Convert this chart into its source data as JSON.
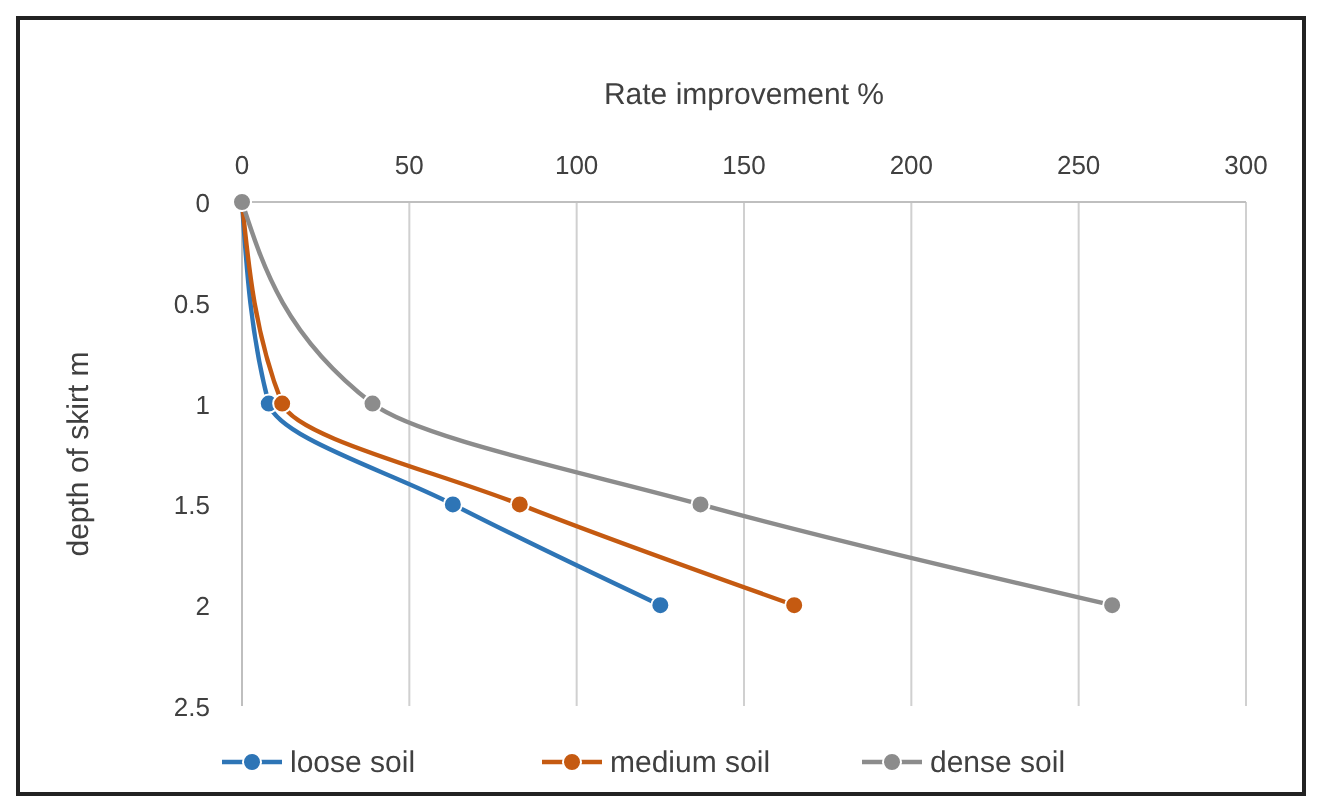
{
  "chart_data": {
    "type": "line",
    "xlabel": "Rate improvement %",
    "ylabel": "depth of skirt m",
    "xlim": [
      0,
      300
    ],
    "xticks": [
      0,
      50,
      100,
      150,
      200,
      250,
      300
    ],
    "ylim": [
      2.5,
      0
    ],
    "yticks": [
      0,
      0.5,
      1,
      1.5,
      2,
      2.5
    ],
    "grid": "x",
    "legend": "bottom",
    "marker": "circle",
    "line_style": "solid",
    "series": [
      {
        "name": "loose soil",
        "color": "#2e75b6",
        "x": [
          0,
          8,
          63,
          125
        ],
        "values": [
          0,
          1,
          1.5,
          2
        ]
      },
      {
        "name": "medium soil",
        "color": "#c55a11",
        "x": [
          0,
          12,
          83,
          165
        ],
        "values": [
          0,
          1,
          1.5,
          2
        ]
      },
      {
        "name": "dense soil",
        "color": "#8c8c8c",
        "x": [
          0,
          39,
          137,
          260
        ],
        "values": [
          0,
          1,
          1.5,
          2
        ]
      }
    ]
  }
}
